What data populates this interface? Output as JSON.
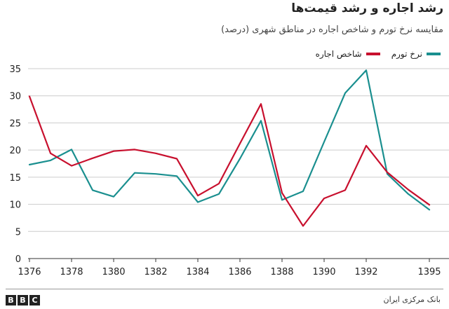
{
  "header": {
    "title": "رشد اجاره و رشد قیمت‌ها",
    "subtitle": "مقایسه نرخ تورم و شاخص اجاره در مناطق شهری (درصد)"
  },
  "legend": {
    "inflation_label": "نرخ تورم",
    "rent_label": "شاخص اجاره"
  },
  "footer": {
    "brand": [
      "B",
      "B",
      "C"
    ],
    "source": "بانک مرکزی ایران"
  },
  "colors": {
    "inflation": "#1a8f8f",
    "rent": "#c8102e",
    "grid": "#cccccc",
    "axis": "#333333"
  },
  "chart_data": {
    "type": "line",
    "title": "رشد اجاره و رشد قیمت‌ها",
    "subtitle": "مقایسه نرخ تورم و شاخص اجاره در مناطق شهری (درصد)",
    "xlabel": "",
    "ylabel": "",
    "x": [
      1376,
      1377,
      1378,
      1379,
      1380,
      1381,
      1382,
      1383,
      1384,
      1385,
      1386,
      1387,
      1388,
      1389,
      1390,
      1391,
      1392,
      1393,
      1394,
      1395
    ],
    "x_ticks": [
      1376,
      1378,
      1380,
      1382,
      1384,
      1386,
      1388,
      1390,
      1392,
      1395
    ],
    "ylim": [
      0,
      35
    ],
    "y_ticks": [
      0,
      5,
      10,
      15,
      20,
      25,
      30,
      35
    ],
    "grid": true,
    "legend_position": "top-right",
    "series": [
      {
        "name": "نرخ تورم",
        "color": "#1a8f8f",
        "values": [
          17.3,
          18.1,
          20.1,
          12.6,
          11.4,
          15.8,
          15.6,
          15.2,
          10.4,
          11.9,
          18.4,
          25.4,
          10.8,
          12.4,
          21.5,
          30.5,
          34.7,
          15.6,
          11.9,
          9.0
        ]
      },
      {
        "name": "شاخص اجاره",
        "color": "#c8102e",
        "values": [
          29.9,
          19.4,
          17.1,
          18.5,
          19.8,
          20.1,
          19.4,
          18.4,
          11.6,
          13.8,
          21.2,
          28.5,
          12.1,
          6.0,
          11.1,
          12.6,
          20.8,
          15.9,
          12.7,
          9.9
        ]
      }
    ]
  }
}
